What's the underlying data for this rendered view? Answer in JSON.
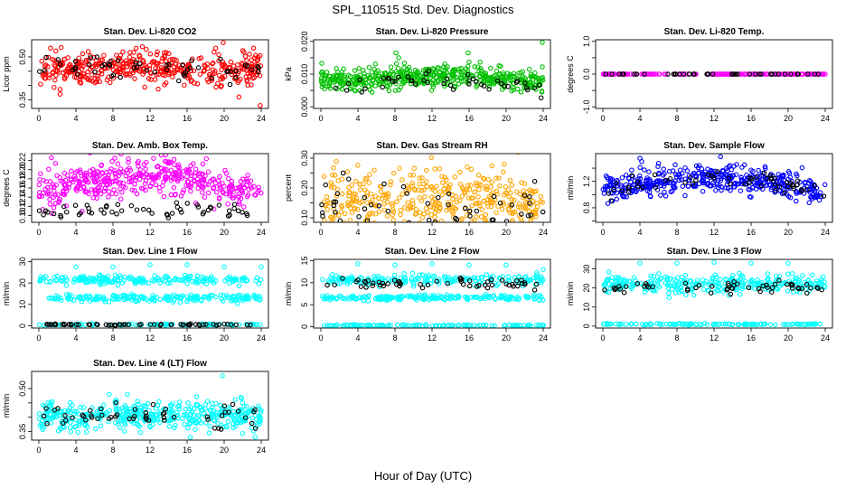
{
  "figure": {
    "title": "SPL_110515  Std. Dev. Diagnostics",
    "xlabel": "Hour of Day (UTC)"
  },
  "chart_data": [
    {
      "type": "scatter",
      "title": "Stan. Dev. Li-820 CO2",
      "ylabel": "Licor ppm",
      "xlim": [
        0,
        24
      ],
      "xticks": [
        0,
        4,
        8,
        12,
        16,
        20,
        24
      ],
      "ylim": [
        0.32,
        0.56
      ],
      "yticks": [
        0.35,
        0.4,
        0.45,
        0.5
      ],
      "yticklabels": [
        "0.35",
        "",
        "",
        "0.50"
      ],
      "colors": {
        "main": "#ff0000",
        "highlight": "#000000"
      },
      "series": [
        {
          "role": "main",
          "n": 420,
          "base": 0.455,
          "amp": 0.005,
          "noise": 0.028,
          "outliers": [
            [
              10.5,
              0.53
            ],
            [
              19.9,
              0.55
            ],
            [
              23.9,
              0.33
            ],
            [
              2.3,
              0.37
            ],
            [
              21.6,
              0.36
            ]
          ]
        },
        {
          "role": "highlight",
          "n": 55,
          "base": 0.455,
          "amp": 0.005,
          "noise": 0.025,
          "outliers": []
        }
      ]
    },
    {
      "type": "scatter",
      "title": "Stan. Dev. Li-820 Pressure",
      "ylabel": "kPa",
      "xlim": [
        0,
        24
      ],
      "xticks": [
        0,
        4,
        8,
        12,
        16,
        20,
        24
      ],
      "ylim": [
        -0.0005,
        0.0205
      ],
      "yticks": [
        0.0,
        0.005,
        0.01,
        0.015,
        0.02
      ],
      "yticklabels": [
        "0.000",
        "",
        "0.010",
        "",
        "0.020"
      ],
      "colors": {
        "main": "#00c000",
        "highlight": "#000000"
      },
      "series": [
        {
          "role": "main",
          "n": 480,
          "base": 0.0075,
          "amp": 0.0018,
          "noise": 0.0016,
          "outliers": [
            [
              8.1,
              0.0165
            ],
            [
              15.9,
              0.0165
            ],
            [
              23.9,
              0.0197
            ],
            [
              0.1,
              0.0133
            ],
            [
              16.0,
              0.0137
            ]
          ]
        },
        {
          "role": "highlight",
          "n": 45,
          "base": 0.0065,
          "amp": 0.0015,
          "noise": 0.0013,
          "outliers": []
        }
      ]
    },
    {
      "type": "scatter",
      "title": "Stan. Dev. Li-820 Temp.",
      "ylabel": "degrees C",
      "xlim": [
        0,
        24
      ],
      "xticks": [
        0,
        4,
        8,
        12,
        16,
        20,
        24
      ],
      "ylim": [
        -1.05,
        1.05
      ],
      "yticks": [
        -1.0,
        -0.5,
        0.0,
        0.5,
        1.0
      ],
      "yticklabels": [
        "-1.0",
        "",
        "0.0",
        "",
        "1.0"
      ],
      "colors": {
        "main": "#ff00ff",
        "highlight": "#000000"
      },
      "series": [
        {
          "role": "main",
          "n": 200,
          "base": 0.0,
          "amp": 0.0,
          "noise": 0.0,
          "outliers": []
        },
        {
          "role": "highlight",
          "n": 45,
          "base": 0.0,
          "amp": 0.0,
          "noise": 0.0,
          "outliers": []
        }
      ]
    },
    {
      "type": "scatter",
      "title": "Stan. Dev. Amb. Box Temp.",
      "ylabel": "degrees C",
      "xlim": [
        0,
        24
      ],
      "xticks": [
        0,
        4,
        8,
        12,
        16,
        20,
        24
      ],
      "ylim": [
        0.085,
        0.235
      ],
      "yticks": [
        0.1,
        0.12,
        0.14,
        0.16,
        0.18,
        0.2,
        0.22
      ],
      "yticklabels": [
        "0.10",
        "0.12",
        "0.14",
        "0.16",
        "0.18",
        "0.20",
        "0.22"
      ],
      "colors": {
        "main": "#ff00ff",
        "highlight": "#000000"
      },
      "series": [
        {
          "role": "main",
          "n": 430,
          "base": 0.145,
          "amp": 0.042,
          "noise": 0.022,
          "outliers": []
        },
        {
          "role": "highlight",
          "n": 55,
          "base": 0.105,
          "amp": 0.008,
          "noise": 0.008,
          "outliers": []
        }
      ]
    },
    {
      "type": "scatter",
      "title": "Stan. Dev. Gas Stream RH",
      "ylabel": "percent",
      "xlim": [
        0,
        24
      ],
      "xticks": [
        0,
        4,
        8,
        12,
        16,
        20,
        24
      ],
      "ylim": [
        0.085,
        0.315
      ],
      "yticks": [
        0.1,
        0.15,
        0.2,
        0.25,
        0.3
      ],
      "yticklabels": [
        "0.10",
        "",
        "0.20",
        "",
        "0.30"
      ],
      "colors": {
        "main": "#ffa500",
        "highlight": "#000000"
      },
      "series": [
        {
          "role": "main",
          "n": 430,
          "base": 0.15,
          "amp": 0.0,
          "noise": 0.055,
          "outliers": []
        },
        {
          "role": "highlight",
          "n": 55,
          "base": 0.13,
          "amp": 0.0,
          "noise": 0.035,
          "outliers": [
            [
              2.4,
              0.25
            ],
            [
              3.0,
              0.23
            ]
          ]
        }
      ]
    },
    {
      "type": "scatter",
      "title": "Stan. Dev. Sample Flow",
      "ylabel": "ml/min",
      "xlim": [
        0,
        24
      ],
      "xticks": [
        0,
        4,
        8,
        12,
        16,
        20,
        24
      ],
      "ylim": [
        0.58,
        1.62
      ],
      "yticks": [
        0.6,
        0.8,
        1.0,
        1.2,
        1.4
      ],
      "yticklabels": [
        "",
        "0.8",
        "",
        "1.2",
        ""
      ],
      "colors": {
        "main": "#0000ff",
        "highlight": "#000000"
      },
      "series": [
        {
          "role": "main",
          "n": 430,
          "base": 1.05,
          "amp": 0.2,
          "noise": 0.1,
          "outliers": [
            [
              4.0,
              1.55
            ],
            [
              4.2,
              1.5
            ]
          ]
        },
        {
          "role": "highlight",
          "n": 55,
          "base": 1.05,
          "amp": 0.2,
          "noise": 0.07,
          "outliers": []
        }
      ]
    },
    {
      "type": "scatter",
      "title": "Stan. Dev. Line 1 Flow",
      "ylabel": "ml/min",
      "xlim": [
        0,
        24
      ],
      "xticks": [
        0,
        4,
        8,
        12,
        16,
        20,
        24
      ],
      "ylim": [
        -1,
        31
      ],
      "yticks": [
        0,
        10,
        20,
        30
      ],
      "yticklabels": [
        "0",
        "10",
        "20",
        "30"
      ],
      "colors": {
        "main": "#00ffff",
        "highlight": "#000000"
      },
      "series": [
        {
          "role": "main",
          "n": 200,
          "base": 21.5,
          "amp": 0.0,
          "noise": 1.0,
          "outliers": [
            [
              4.0,
              27.5
            ],
            [
              8.0,
              27.5
            ],
            [
              12.0,
              28.5
            ],
            [
              16.0,
              28.5
            ],
            [
              20.0,
              27.5
            ],
            [
              24.0,
              27.5
            ]
          ]
        },
        {
          "role": "main",
          "n": 200,
          "base": 13.0,
          "amp": 0.0,
          "noise": 0.8,
          "outliers": []
        },
        {
          "role": "main",
          "n": 100,
          "base": 0.6,
          "amp": 0.0,
          "noise": 0.15,
          "outliers": []
        },
        {
          "role": "highlight",
          "n": 60,
          "base": 0.6,
          "amp": 0.0,
          "noise": 0.15,
          "outliers": []
        }
      ]
    },
    {
      "type": "scatter",
      "title": "Stan. Dev. Line 2 Flow",
      "ylabel": "ml/min",
      "xlim": [
        0,
        24
      ],
      "xticks": [
        0,
        4,
        8,
        12,
        16,
        20,
        24
      ],
      "ylim": [
        -0.3,
        15.3
      ],
      "yticks": [
        0,
        5,
        10,
        15
      ],
      "yticklabels": [
        "0",
        "5",
        "10",
        "15"
      ],
      "colors": {
        "main": "#00ffff",
        "highlight": "#000000"
      },
      "series": [
        {
          "role": "main",
          "n": 200,
          "base": 10.6,
          "amp": 0.0,
          "noise": 0.6,
          "outliers": [
            [
              4.0,
              14.3
            ],
            [
              8.0,
              14.0
            ],
            [
              12.0,
              14.3
            ],
            [
              16.0,
              14.0
            ],
            [
              20.0,
              14.0
            ],
            [
              24.0,
              13.0
            ]
          ]
        },
        {
          "role": "main",
          "n": 200,
          "base": 6.6,
          "amp": 0.0,
          "noise": 0.3,
          "outliers": []
        },
        {
          "role": "main",
          "n": 120,
          "base": 0.3,
          "amp": 0.0,
          "noise": 0.08,
          "outliers": []
        },
        {
          "role": "highlight",
          "n": 55,
          "base": 9.8,
          "amp": 0.0,
          "noise": 0.6,
          "outliers": []
        }
      ]
    },
    {
      "type": "scatter",
      "title": "Stan. Dev. Line 3 Flow",
      "ylabel": "ml/min",
      "xlim": [
        0,
        24
      ],
      "xticks": [
        0,
        4,
        8,
        12,
        16,
        20,
        24
      ],
      "ylim": [
        -1,
        35
      ],
      "yticks": [
        0,
        10,
        20,
        30
      ],
      "yticklabels": [
        "0",
        "10",
        "20",
        "30"
      ],
      "colors": {
        "main": "#00ffff",
        "highlight": "#000000"
      },
      "series": [
        {
          "role": "main",
          "n": 300,
          "base": 22.0,
          "amp": 0.0,
          "noise": 2.3,
          "outliers": [
            [
              4.0,
              33.0
            ],
            [
              8.0,
              33.0
            ],
            [
              12.0,
              33.5
            ],
            [
              16.0,
              33.0
            ],
            [
              20.0,
              33.0
            ]
          ]
        },
        {
          "role": "main",
          "n": 120,
          "base": 1.0,
          "amp": 0.0,
          "noise": 0.2,
          "outliers": []
        },
        {
          "role": "highlight",
          "n": 55,
          "base": 20.5,
          "amp": 0.0,
          "noise": 1.4,
          "outliers": []
        }
      ]
    },
    {
      "type": "scatter",
      "title": "Stan. Dev. Line 4 (LT) Flow",
      "ylabel": "ml/min",
      "xlim": [
        0,
        24
      ],
      "xticks": [
        0,
        4,
        8,
        12,
        16,
        20,
        24
      ],
      "ylim": [
        0.32,
        0.56
      ],
      "yticks": [
        0.35,
        0.4,
        0.45,
        0.5
      ],
      "yticklabels": [
        "0.35",
        "",
        "",
        "0.50"
      ],
      "colors": {
        "main": "#00ffff",
        "highlight": "#000000"
      },
      "series": [
        {
          "role": "main",
          "n": 420,
          "base": 0.405,
          "amp": 0.0,
          "noise": 0.025,
          "outliers": [
            [
              19.8,
              0.545
            ],
            [
              7.6,
              0.48
            ]
          ]
        },
        {
          "role": "highlight",
          "n": 55,
          "base": 0.405,
          "amp": 0.0,
          "noise": 0.022,
          "outliers": []
        }
      ]
    }
  ]
}
